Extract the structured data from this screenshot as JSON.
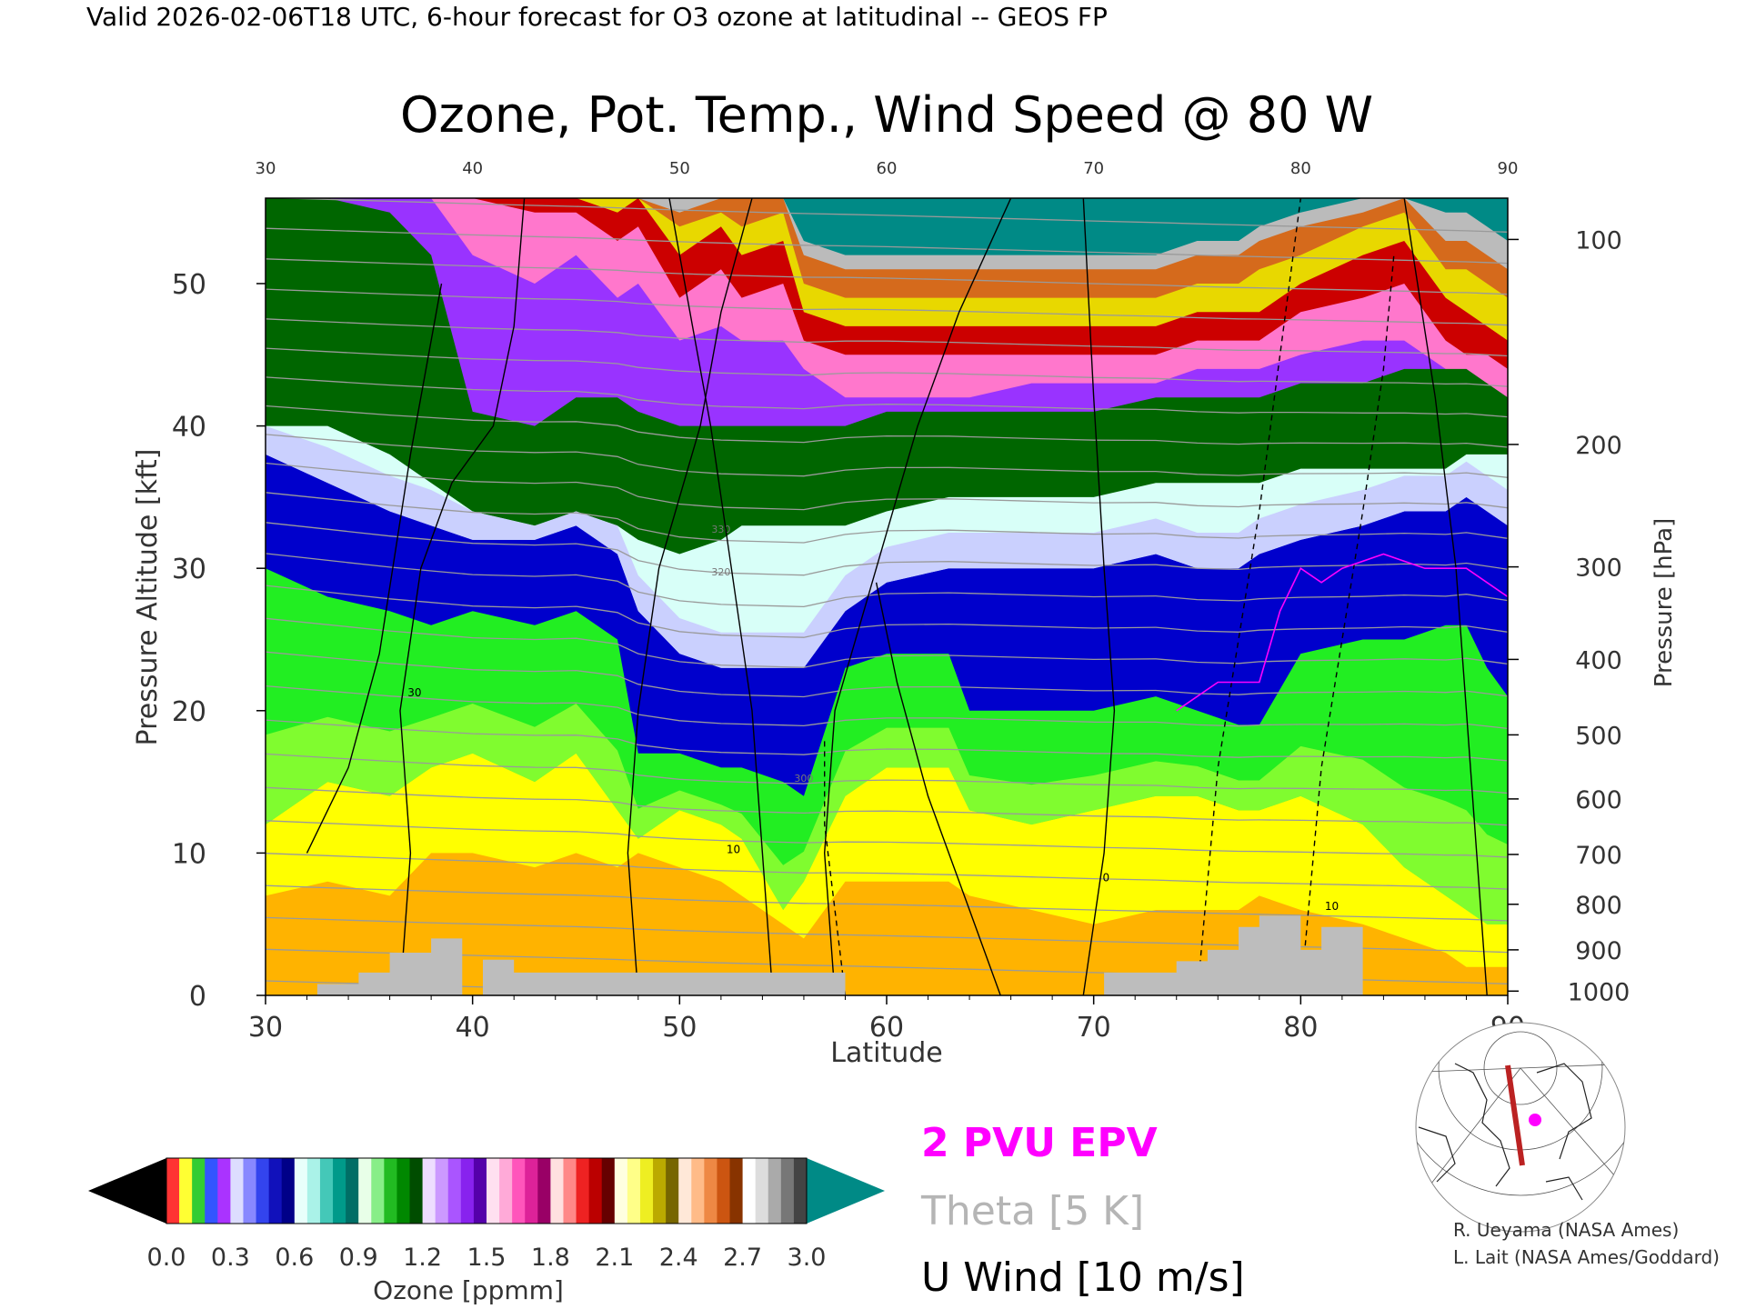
{
  "header": {
    "valid_line": "Valid 2026-02-06T18 UTC, 6-hour forecast for O3 ozone at latitudinal -- GEOS FP"
  },
  "chart_data": {
    "type": "heatmap",
    "title": "Ozone, Pot. Temp., Wind Speed @ 80 W",
    "xlabel": "Latitude",
    "ylabel": "Pressure Altitude [kft]",
    "y2label": "Pressure [hPa]",
    "xlim": [
      30,
      90
    ],
    "ylim": [
      0,
      56
    ],
    "x_ticks": [
      "30",
      "40",
      "50",
      "60",
      "70",
      "80",
      "90"
    ],
    "y_ticks": [
      "0",
      "10",
      "20",
      "30",
      "40",
      "50"
    ],
    "pressure_ticks": [
      {
        "label": "100",
        "kft": 53.1
      },
      {
        "label": "200",
        "kft": 38.7
      },
      {
        "label": "300",
        "kft": 30.1
      },
      {
        "label": "400",
        "kft": 23.6
      },
      {
        "label": "500",
        "kft": 18.3
      },
      {
        "label": "600",
        "kft": 13.8
      },
      {
        "label": "700",
        "kft": 9.9
      },
      {
        "label": "800",
        "kft": 6.4
      },
      {
        "label": "900",
        "kft": 3.2
      },
      {
        "label": "1000",
        "kft": 0.3
      }
    ],
    "ozone_layer_tops_kft": {
      "lat": [
        30,
        33,
        36,
        38,
        40,
        43,
        45,
        47,
        48,
        50,
        52,
        53,
        55,
        56,
        58,
        60,
        63,
        64,
        67,
        70,
        73,
        75,
        77,
        78,
        80,
        83,
        85,
        87,
        88,
        89,
        90
      ],
      "orange": [
        7,
        8,
        7,
        10,
        10,
        9,
        10,
        9,
        10,
        9,
        8,
        7,
        5,
        4,
        8,
        8,
        8,
        7,
        6,
        5,
        6,
        6,
        6,
        7,
        6,
        5,
        4,
        3,
        2,
        2,
        2
      ],
      "yellow": [
        12,
        15,
        14,
        16,
        17,
        15,
        17,
        13,
        11,
        13,
        12,
        11,
        6,
        8,
        14,
        16,
        16,
        13,
        12,
        13,
        14,
        14,
        13,
        13,
        14,
        12,
        9,
        7,
        6,
        5,
        5
      ],
      "green": [
        30,
        28,
        27,
        26,
        27,
        26,
        27,
        25,
        17,
        17,
        16,
        16,
        15,
        14,
        23,
        24,
        24,
        20,
        20,
        20,
        21,
        20,
        19,
        19,
        24,
        25,
        25,
        26,
        26,
        23,
        21
      ],
      "blue": [
        38,
        36,
        34,
        33,
        32,
        32,
        33,
        31,
        27,
        24,
        23,
        23,
        23,
        23,
        27,
        29,
        30,
        30,
        30,
        30,
        31,
        30,
        30,
        31,
        32,
        33,
        34,
        34,
        35,
        34,
        33
      ],
      "cyan": [
        40,
        40,
        38,
        36,
        34,
        33,
        34,
        33,
        32,
        31,
        32,
        33,
        33,
        33,
        33,
        34,
        35,
        35,
        35,
        35,
        36,
        36,
        36,
        36,
        37,
        37,
        37,
        37,
        38,
        38,
        38
      ],
      "green2": [
        56,
        56,
        55,
        52,
        41,
        40,
        42,
        42,
        41,
        40,
        40,
        40,
        40,
        40,
        40,
        41,
        41,
        41,
        41,
        41,
        42,
        42,
        42,
        42,
        43,
        43,
        44,
        44,
        44,
        43,
        42
      ],
      "purple": [
        56,
        56,
        56,
        56,
        52,
        50,
        52,
        49,
        50,
        46,
        47,
        46,
        46,
        44,
        42,
        42,
        42,
        42,
        43,
        43,
        43,
        44,
        44,
        44,
        45,
        46,
        46,
        44,
        42,
        42,
        42
      ],
      "pink": [
        56,
        56,
        56,
        56,
        56,
        55,
        55,
        53,
        54,
        49,
        51,
        49,
        50,
        46,
        45,
        45,
        45,
        45,
        45,
        45,
        45,
        46,
        46,
        46,
        48,
        49,
        50,
        46,
        45,
        45,
        44
      ],
      "red": [
        56,
        56,
        56,
        56,
        56,
        56,
        56,
        55,
        56,
        52,
        54,
        52,
        53,
        48,
        47,
        47,
        47,
        47,
        47,
        47,
        47,
        48,
        48,
        48,
        50,
        52,
        53,
        49,
        48,
        47,
        46
      ],
      "gold": [
        56,
        56,
        56,
        56,
        56,
        56,
        56,
        56,
        56,
        54,
        55,
        54,
        55,
        50,
        49,
        49,
        49,
        49,
        49,
        49,
        49,
        50,
        50,
        51,
        52,
        54,
        55,
        51,
        51,
        50,
        49
      ],
      "orange2": [
        56,
        56,
        56,
        56,
        56,
        56,
        56,
        56,
        56,
        55,
        56,
        56,
        56,
        52,
        51,
        51,
        51,
        51,
        51,
        51,
        51,
        52,
        52,
        53,
        54,
        55,
        56,
        53,
        53,
        52,
        51
      ],
      "gray": [
        56,
        56,
        56,
        56,
        56,
        56,
        56,
        56,
        56,
        56,
        56,
        56,
        56,
        53,
        52,
        52,
        52,
        52,
        52,
        52,
        52,
        53,
        53,
        54,
        55,
        56,
        56,
        55,
        55,
        54,
        53
      ]
    },
    "terrain_kft": {
      "lat": [
        30,
        32.5,
        32.5,
        34.5,
        34.5,
        36,
        36,
        38,
        38,
        39.5,
        39.5,
        40.5,
        40.5,
        42,
        42,
        58,
        58,
        70.5,
        70.5,
        74,
        74,
        75.5,
        75.5,
        77,
        77,
        78,
        78,
        80,
        80,
        81,
        81,
        83,
        83,
        90
      ],
      "top": [
        0,
        0,
        0.8,
        0.8,
        1.6,
        1.6,
        3.0,
        3.0,
        4.0,
        4.0,
        0,
        0,
        2.5,
        2.5,
        1.6,
        1.6,
        0,
        0,
        1.6,
        1.6,
        2.4,
        2.4,
        3.2,
        3.2,
        4.8,
        4.8,
        5.6,
        5.6,
        3.2,
        3.2,
        4.8,
        4.8,
        0,
        0
      ]
    },
    "wind_contours_lat": {
      "solid": [
        {
          "lat": [
            36.5,
            37,
            36.5,
            37.5,
            39,
            41,
            42,
            42.5
          ],
          "kft": [
            0,
            10,
            20,
            30,
            36,
            40,
            47,
            56
          ]
        },
        {
          "lat": [
            48,
            47.5,
            48,
            49,
            51,
            52,
            53.5
          ],
          "kft": [
            0,
            10,
            20,
            30,
            40,
            48,
            56
          ]
        },
        {
          "lat": [
            54.5,
            54,
            53.5,
            52.5,
            51.5,
            50.5,
            49.5
          ],
          "kft": [
            0,
            10,
            20,
            30,
            40,
            48,
            56
          ]
        },
        {
          "lat": [
            57.5,
            57,
            57.5,
            59.5,
            61.5,
            63.5,
            66
          ],
          "kft": [
            0,
            10,
            20,
            30,
            40,
            48,
            56
          ]
        },
        {
          "lat": [
            65.5,
            64,
            62,
            60.5,
            59.5
          ],
          "kft": [
            0,
            6,
            14,
            22,
            29
          ]
        },
        {
          "lat": [
            69.5,
            70.5,
            71,
            70.5,
            70,
            69.5
          ],
          "kft": [
            0,
            10,
            20,
            30,
            42,
            56
          ]
        },
        {
          "lat": [
            89,
            88.5,
            88,
            87.5,
            86.5,
            85
          ],
          "kft": [
            0,
            10,
            20,
            30,
            42,
            56
          ]
        },
        {
          "lat": [
            32,
            34,
            35.5,
            37,
            38.5
          ],
          "kft": [
            10,
            16,
            24,
            38,
            50
          ]
        }
      ],
      "dashed": [
        {
          "lat": [
            75,
            75.5,
            76,
            77,
            78,
            79,
            80
          ],
          "kft": [
            0,
            8,
            16,
            25,
            34,
            45,
            56
          ]
        },
        {
          "lat": [
            80,
            80.5,
            81,
            82,
            83,
            84,
            84.5
          ],
          "kft": [
            0,
            8,
            16,
            25,
            34,
            44,
            52
          ]
        },
        {
          "lat": [
            58,
            57.5,
            57,
            57
          ],
          "kft": [
            0,
            6,
            12,
            18
          ]
        }
      ],
      "label_ten": "10",
      "label_zero": "0",
      "label_thirty": "30"
    },
    "pv_contour_kft": {
      "lat": [
        74,
        76,
        78,
        79,
        80,
        81,
        82,
        84,
        86,
        88,
        89,
        90
      ],
      "kft": [
        20,
        22,
        22,
        27,
        30,
        29,
        30,
        31,
        30,
        30,
        29,
        28
      ]
    },
    "legend": {
      "pv": "2 PVU EPV",
      "theta": "Theta [5 K]",
      "wind": "U Wind [10 m/s]"
    },
    "colorbar": {
      "label": "Ozone [ppmm]",
      "ticks": [
        "0.0",
        "0.3",
        "0.6",
        "0.9",
        "1.2",
        "1.5",
        "1.8",
        "2.1",
        "2.4",
        "2.7",
        "3.0"
      ]
    },
    "theta_labels": [
      "330",
      "320",
      "300"
    ],
    "credits": [
      "R. Ueyama (NASA Ames)",
      "L. Lait (NASA Ames/Goddard)"
    ],
    "colors": {
      "orange": "#ffb300",
      "yellow": "#ffff00",
      "green": "#22ee22",
      "lime": "#99ff33",
      "teal": "#009a8a",
      "blue": "#0000cc",
      "lavender": "#c8c8ff",
      "cyan_light": "#d8fff8",
      "green_dark": "#006600",
      "purple": "#9933ff",
      "pink": "#ff77cc",
      "red": "#cc0000",
      "gold": "#e8d800",
      "burnt": "#d56a1c",
      "gray": "#bbbbbb",
      "top_teal": "#008a86",
      "magenta": "#ff00ff",
      "terrain": "#bdbdbd"
    }
  }
}
